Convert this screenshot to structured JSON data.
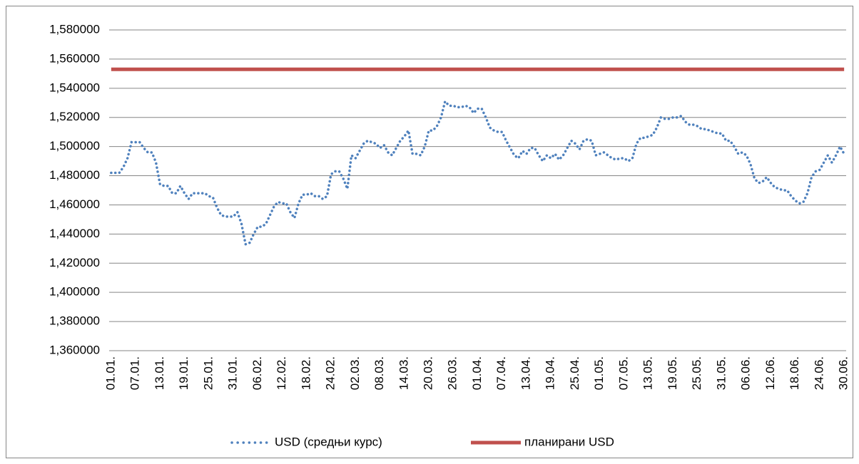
{
  "chart_data": {
    "type": "line",
    "categories": [
      "01.01.",
      null,
      null,
      null,
      null,
      null,
      "07.01.",
      null,
      null,
      null,
      null,
      null,
      "13.01.",
      null,
      null,
      null,
      null,
      null,
      "19.01.",
      null,
      null,
      null,
      null,
      null,
      "25.01.",
      null,
      null,
      null,
      null,
      null,
      "31.01.",
      null,
      null,
      null,
      null,
      null,
      "06.02.",
      null,
      null,
      null,
      null,
      null,
      "12.02.",
      null,
      null,
      null,
      null,
      null,
      "18.02.",
      null,
      null,
      null,
      null,
      null,
      "24.02.",
      null,
      null,
      null,
      null,
      null,
      "02.03.",
      null,
      null,
      null,
      null,
      null,
      "08.03.",
      null,
      null,
      null,
      null,
      null,
      "14.03.",
      null,
      null,
      null,
      null,
      null,
      "20.03.",
      null,
      null,
      null,
      null,
      null,
      "26.03.",
      null,
      null,
      null,
      null,
      null,
      "01.04.",
      null,
      null,
      null,
      null,
      null,
      "07.04.",
      null,
      null,
      null,
      null,
      null,
      "13.04.",
      null,
      null,
      null,
      null,
      null,
      "19.04.",
      null,
      null,
      null,
      null,
      null,
      "25.04.",
      null,
      null,
      null,
      null,
      null,
      "01.05.",
      null,
      null,
      null,
      null,
      null,
      "07.05.",
      null,
      null,
      null,
      null,
      null,
      "13.05.",
      null,
      null,
      null,
      null,
      null,
      "19.05.",
      null,
      null,
      null,
      null,
      null,
      "25.05.",
      null,
      null,
      null,
      null,
      null,
      "31.05.",
      null,
      null,
      null,
      null,
      null,
      "06.06.",
      null,
      null,
      null,
      null,
      null,
      "12.06.",
      null,
      null,
      null,
      null,
      null,
      "18.06.",
      null,
      null,
      null,
      null,
      null,
      "24.06.",
      null,
      null,
      null,
      null,
      null,
      "30.06."
    ],
    "series": [
      {
        "name": "USD (средњи курс)",
        "color": "#4f81bd",
        "line_style": "dotted",
        "values": [
          1.482,
          1.482,
          1.482,
          1.486,
          1.492,
          1.503,
          1.503,
          1.503,
          1.499,
          1.496,
          1.496,
          1.489,
          1.474,
          1.473,
          1.473,
          1.468,
          1.468,
          1.473,
          1.468,
          1.464,
          1.468,
          1.468,
          1.468,
          1.468,
          1.466,
          1.465,
          1.458,
          1.453,
          1.452,
          1.452,
          1.452,
          1.455,
          1.447,
          1.433,
          1.434,
          1.44,
          1.445,
          1.445,
          1.447,
          1.453,
          1.459,
          1.462,
          1.461,
          1.461,
          1.455,
          1.451,
          1.461,
          1.467,
          1.467,
          1.468,
          1.466,
          1.466,
          1.464,
          1.466,
          1.481,
          1.483,
          1.483,
          1.478,
          1.471,
          1.494,
          1.492,
          1.497,
          1.502,
          1.504,
          1.503,
          1.502,
          1.499,
          1.501,
          1.496,
          1.494,
          1.499,
          1.504,
          1.507,
          1.511,
          1.495,
          1.495,
          1.494,
          1.5,
          1.511,
          1.511,
          1.514,
          1.52,
          1.531,
          1.528,
          1.528,
          1.527,
          1.527,
          1.528,
          1.527,
          1.523,
          1.526,
          1.526,
          1.52,
          1.513,
          1.511,
          1.51,
          1.51,
          1.504,
          1.499,
          1.494,
          1.492,
          1.497,
          1.495,
          1.499,
          1.499,
          1.494,
          1.49,
          1.494,
          1.492,
          1.495,
          1.491,
          1.494,
          1.499,
          1.504,
          1.502,
          1.498,
          1.504,
          1.505,
          1.504,
          1.494,
          1.495,
          1.496,
          1.494,
          1.492,
          1.491,
          1.492,
          1.492,
          1.49,
          1.492,
          1.502,
          1.506,
          1.506,
          1.507,
          1.508,
          1.513,
          1.52,
          1.519,
          1.519,
          1.52,
          1.52,
          1.521,
          1.517,
          1.515,
          1.515,
          1.514,
          1.512,
          1.512,
          1.511,
          1.51,
          1.509,
          1.509,
          1.504,
          1.504,
          1.5,
          1.495,
          1.496,
          1.494,
          1.488,
          1.478,
          1.475,
          1.476,
          1.479,
          1.475,
          1.472,
          1.471,
          1.47,
          1.47,
          1.466,
          1.463,
          1.461,
          1.462,
          1.468,
          1.479,
          1.483,
          1.484,
          1.489,
          1.494,
          1.489,
          1.494,
          1.5,
          1.495
        ]
      },
      {
        "name": "планирани USD",
        "color": "#c0504d",
        "line_style": "solid",
        "values": [
          1.553,
          1.553,
          1.553,
          1.553,
          1.553,
          1.553,
          1.553,
          1.553,
          1.553,
          1.553,
          1.553,
          1.553,
          1.553,
          1.553,
          1.553,
          1.553,
          1.553,
          1.553,
          1.553,
          1.553,
          1.553,
          1.553,
          1.553,
          1.553,
          1.553,
          1.553,
          1.553,
          1.553,
          1.553,
          1.553,
          1.553,
          1.553,
          1.553,
          1.553,
          1.553,
          1.553,
          1.553,
          1.553,
          1.553,
          1.553,
          1.553,
          1.553,
          1.553,
          1.553,
          1.553,
          1.553,
          1.553,
          1.553,
          1.553,
          1.553,
          1.553,
          1.553,
          1.553,
          1.553,
          1.553,
          1.553,
          1.553,
          1.553,
          1.553,
          1.553,
          1.553,
          1.553,
          1.553,
          1.553,
          1.553,
          1.553,
          1.553,
          1.553,
          1.553,
          1.553,
          1.553,
          1.553,
          1.553,
          1.553,
          1.553,
          1.553,
          1.553,
          1.553,
          1.553,
          1.553,
          1.553,
          1.553,
          1.553,
          1.553,
          1.553,
          1.553,
          1.553,
          1.553,
          1.553,
          1.553,
          1.553,
          1.553,
          1.553,
          1.553,
          1.553,
          1.553,
          1.553,
          1.553,
          1.553,
          1.553,
          1.553,
          1.553,
          1.553,
          1.553,
          1.553,
          1.553,
          1.553,
          1.553,
          1.553,
          1.553,
          1.553,
          1.553,
          1.553,
          1.553,
          1.553,
          1.553,
          1.553,
          1.553,
          1.553,
          1.553,
          1.553,
          1.553,
          1.553,
          1.553,
          1.553,
          1.553,
          1.553,
          1.553,
          1.553,
          1.553,
          1.553,
          1.553,
          1.553,
          1.553,
          1.553,
          1.553,
          1.553,
          1.553,
          1.553,
          1.553,
          1.553,
          1.553,
          1.553,
          1.553,
          1.553,
          1.553,
          1.553,
          1.553,
          1.553,
          1.553,
          1.553,
          1.553,
          1.553,
          1.553,
          1.553,
          1.553,
          1.553,
          1.553,
          1.553,
          1.553,
          1.553,
          1.553,
          1.553,
          1.553,
          1.553,
          1.553,
          1.553,
          1.553,
          1.553,
          1.553,
          1.553,
          1.553,
          1.553,
          1.553,
          1.553,
          1.553,
          1.553,
          1.553,
          1.553,
          1.553,
          1.553
        ]
      }
    ],
    "ylim": [
      1.36,
      1.58
    ],
    "yticks": [
      {
        "value": 1.36,
        "label": "1,360000"
      },
      {
        "value": 1.38,
        "label": "1,380000"
      },
      {
        "value": 1.4,
        "label": "1,400000"
      },
      {
        "value": 1.42,
        "label": "1,420000"
      },
      {
        "value": 1.44,
        "label": "1,440000"
      },
      {
        "value": 1.46,
        "label": "1,460000"
      },
      {
        "value": 1.48,
        "label": "1,480000"
      },
      {
        "value": 1.5,
        "label": "1,500000"
      },
      {
        "value": 1.52,
        "label": "1,520000"
      },
      {
        "value": 1.54,
        "label": "1,540000"
      },
      {
        "value": 1.56,
        "label": "1,560000"
      },
      {
        "value": 1.58,
        "label": "1,580000"
      }
    ],
    "grid": true,
    "legend": "bottom"
  }
}
